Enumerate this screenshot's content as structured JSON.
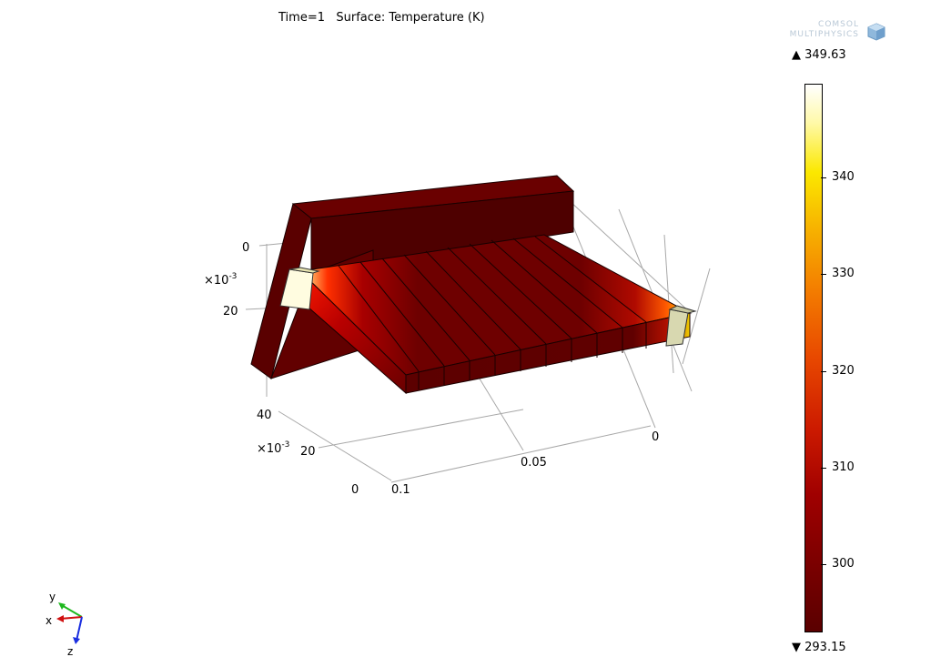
{
  "header": {
    "title": "Time=1   Surface: Temperature (K)"
  },
  "logo": {
    "line1": "COMSOL",
    "line2": "MULTIPHYSICS"
  },
  "legend": {
    "max_label": "▲ 349.63",
    "min_label": "▼ 293.15",
    "ticks": [
      "340",
      "330",
      "320",
      "310",
      "300"
    ],
    "colormap": "thermal",
    "colors": {
      "low": "#5a0000",
      "mid": "#e84800",
      "high": "#ffffff"
    }
  },
  "axes": {
    "y_ticks": [
      "0",
      "20"
    ],
    "y_exp": "×10",
    "y_exp_power": "-3",
    "z_ticks": [
      "40",
      "20",
      "0"
    ],
    "z_exp": "×10",
    "z_exp_power": "-3",
    "x_ticks": [
      "0",
      "0.05",
      "0.1"
    ]
  },
  "triad": {
    "y": "y",
    "x": "x",
    "z": "z"
  }
}
